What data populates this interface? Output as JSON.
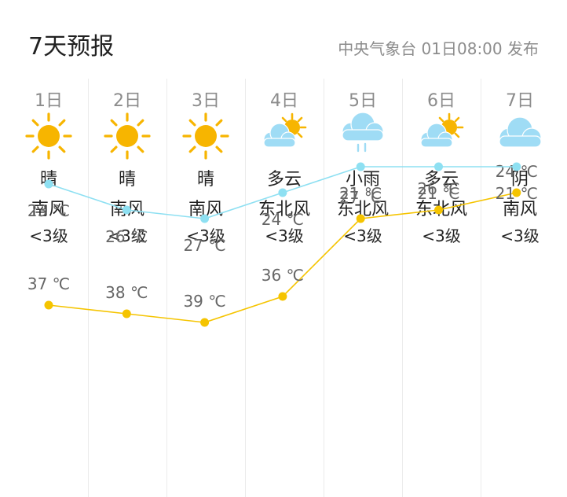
{
  "header": {
    "title": "7天预报",
    "pubinfo": "中央气象台 01日08:00 发布"
  },
  "days": [
    {
      "day": "1日",
      "icon": "sunny-icon",
      "weather": "晴",
      "wind_dir": "南风",
      "wind_level": "<3级"
    },
    {
      "day": "2日",
      "icon": "sunny-icon",
      "weather": "晴",
      "wind_dir": "南风",
      "wind_level": "<3级"
    },
    {
      "day": "3日",
      "icon": "sunny-icon",
      "weather": "晴",
      "wind_dir": "南风",
      "wind_level": "<3级"
    },
    {
      "day": "4日",
      "icon": "partly-cloudy-icon",
      "weather": "多云",
      "wind_dir": "东北风",
      "wind_level": "<3级"
    },
    {
      "day": "5日",
      "icon": "light-rain-icon",
      "weather": "小雨",
      "wind_dir": "东北风",
      "wind_level": "<3级"
    },
    {
      "day": "6日",
      "icon": "partly-cloudy-icon",
      "weather": "多云",
      "wind_dir": "东北风",
      "wind_level": "<3级"
    },
    {
      "day": "7日",
      "icon": "overcast-icon",
      "weather": "阴",
      "wind_dir": "南风",
      "wind_level": "<3级"
    }
  ],
  "colors": {
    "high_line": "#f5c400",
    "low_line": "#8ee0f2",
    "sun": "#f7b500",
    "cloud": "#9fdcf5"
  },
  "chart_data": {
    "type": "line",
    "x": [
      "1日",
      "2日",
      "3日",
      "4日",
      "5日",
      "6日",
      "7日"
    ],
    "unit": "℃",
    "series": [
      {
        "values": [
          37,
          38,
          39,
          36,
          27,
          26,
          24
        ]
      },
      {
        "values": [
          23,
          26,
          27,
          24,
          21,
          21,
          21
        ]
      }
    ]
  }
}
